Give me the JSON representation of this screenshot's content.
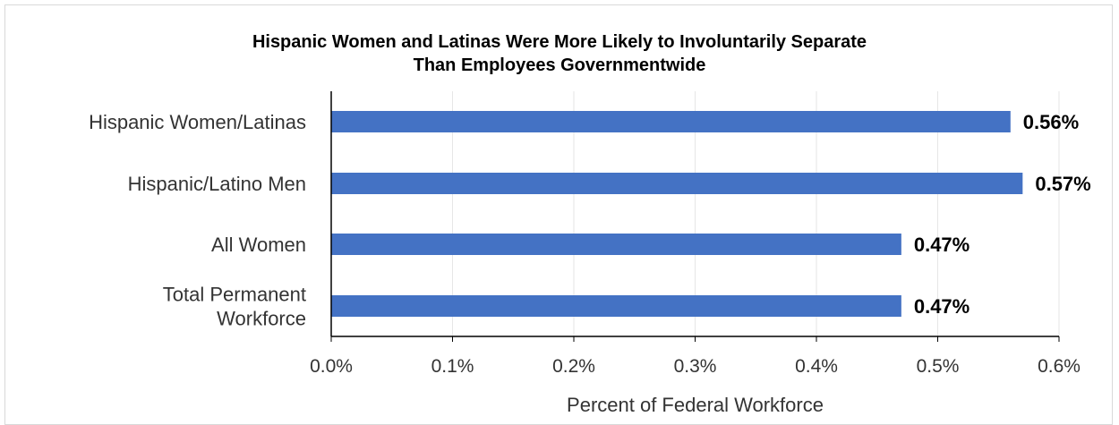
{
  "chart_data": {
    "type": "bar",
    "orientation": "horizontal",
    "title_lines": [
      "Hispanic Women and Latinas Were More Likely to Involuntarily Separate",
      "Than Employees Governmentwide"
    ],
    "categories": [
      [
        "Hispanic Women/Latinas"
      ],
      [
        "Hispanic/Latino Men"
      ],
      [
        "All Women"
      ],
      [
        "Total Permanent",
        "Workforce"
      ]
    ],
    "values": [
      0.56,
      0.57,
      0.47,
      0.47
    ],
    "data_labels": [
      "0.56%",
      "0.57%",
      "0.47%",
      "0.47%"
    ],
    "xlim": [
      0,
      0.6
    ],
    "ticks": [
      0,
      0.1,
      0.2,
      0.3,
      0.4,
      0.5,
      0.6
    ],
    "tick_labels": [
      "0.0%",
      "0.1%",
      "0.2%",
      "0.3%",
      "0.4%",
      "0.5%",
      "0.6%"
    ],
    "xlabel": "Percent of Federal Workforce",
    "ylabel": "",
    "grid": "vertical",
    "legend": "none",
    "bar_color": "#4472c4",
    "grid_color": "#e6e6e6",
    "axis_color": "#000000"
  }
}
